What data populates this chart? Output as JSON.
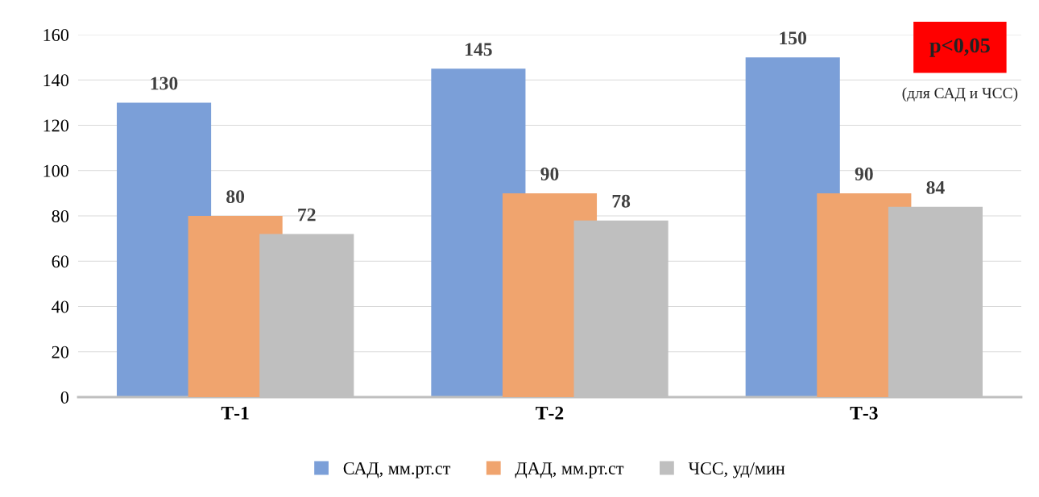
{
  "chart_data": {
    "type": "bar",
    "categories": [
      "Т-1",
      "Т-2",
      "Т-3"
    ],
    "series": [
      {
        "name": "САД, мм.рт.ст",
        "color": "#7b9fd8",
        "values": [
          130,
          145,
          150
        ]
      },
      {
        "name": "ДАД, мм.рт.ст",
        "color": "#f0a46e",
        "values": [
          80,
          90,
          90
        ]
      },
      {
        "name": "ЧСС, уд/мин",
        "color": "#bfbfbf",
        "values": [
          72,
          78,
          84
        ]
      }
    ],
    "ylim": [
      0,
      160
    ],
    "yticks": [
      0,
      20,
      40,
      60,
      80,
      100,
      120,
      140,
      160
    ],
    "grid": "y",
    "legend": "bottom",
    "data_labels": true,
    "annotations": [
      "p<0,05",
      "(для САД и ЧСС)"
    ]
  }
}
